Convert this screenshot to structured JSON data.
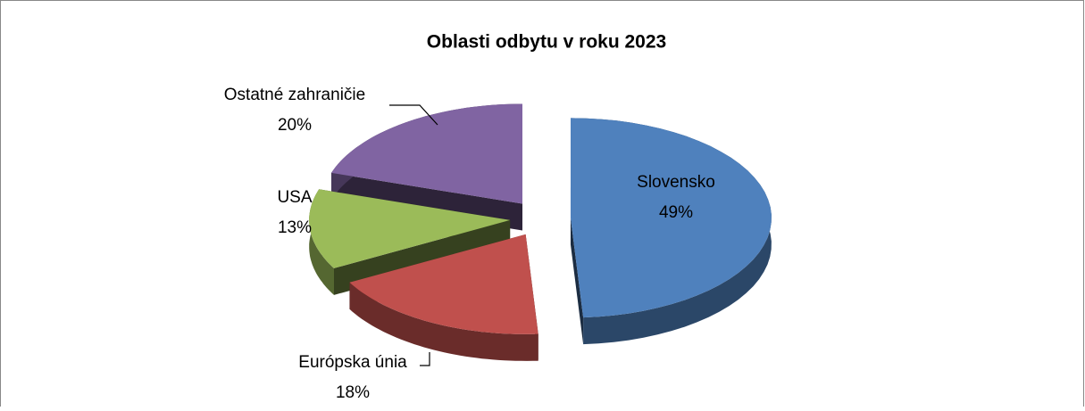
{
  "chart_data": {
    "type": "pie",
    "title": "Oblasti odbytu v roku 2023",
    "categories": [
      "Slovensko",
      "Európska únia",
      "USA",
      "Ostatné zahraničie"
    ],
    "values": [
      49,
      18,
      13,
      20
    ],
    "value_labels": [
      "49%",
      "18%",
      "13%",
      "20%"
    ],
    "colors": [
      "#4f81bd",
      "#c0504d",
      "#9bbb59",
      "#8064a2"
    ]
  }
}
